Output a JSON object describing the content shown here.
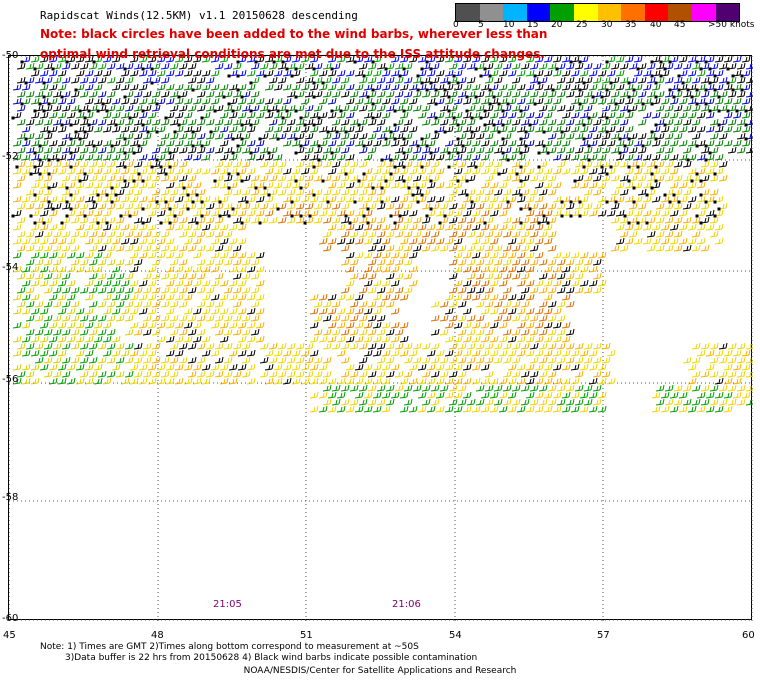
{
  "title": "Rapidscat Winds(12.5KM) v1.1 20150628 descending",
  "note_line1": "Note: black circles have been added to the wind barbs, wherever less than",
  "note_line2": "optimal wind retrieval conditions are met due to the ISS attitude changes.",
  "legend": {
    "labels": [
      "0",
      "5",
      "10",
      "15",
      "20",
      "25",
      "30",
      "35",
      "40",
      "45",
      ">50 knots"
    ],
    "colors": [
      "#505050",
      "#909090",
      "#00b4ff",
      "#0000ff",
      "#00a000",
      "#ffff00",
      "#ffc000",
      "#ff7000",
      "#ff0000",
      "#b05000",
      "#ff00ff",
      "#500070"
    ]
  },
  "latitude_labels": [
    "-50",
    "-52",
    "-54",
    "-56",
    "-58",
    "-60"
  ],
  "longitude_labels": [
    "45",
    "48",
    "51",
    "54",
    "57",
    "60"
  ],
  "time_labels": [
    "21:05",
    "21:06"
  ],
  "footnote_line1": "Note: 1) Times are GMT 2)Times along bottom correspond to measurement at ~50S",
  "footnote_line2": "3)Data buffer is 22 hrs from 20150628 4) Black wind barbs indicate possible contamination",
  "credit": "NOAA/NESDIS/Center for Satellite Applications and Research"
}
